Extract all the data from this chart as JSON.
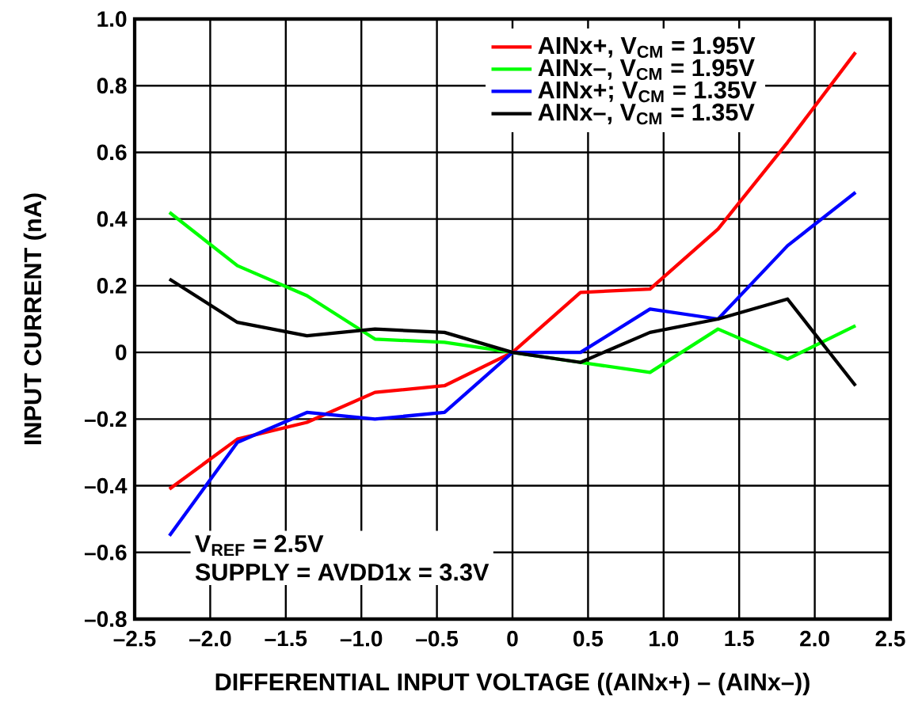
{
  "chart_data": {
    "type": "line",
    "xlabel": "DIFFERENTIAL INPUT VOLTAGE ((AINx+) – (AINx–))",
    "ylabel": "INPUT CURRENT (nA)",
    "x": [
      -2.27,
      -1.82,
      -1.36,
      -0.91,
      -0.45,
      0,
      0.45,
      0.91,
      1.36,
      1.82,
      2.27
    ],
    "series": [
      {
        "name": "AINx+, V$_{CM}$ = 1.95V",
        "color": "#ff0000",
        "values": [
          -0.41,
          -0.26,
          -0.21,
          -0.12,
          -0.1,
          0,
          0.18,
          0.19,
          0.37,
          0.63,
          0.9
        ]
      },
      {
        "name": "AINx–, V$_{CM}$ = 1.95V",
        "color": "#00ff00",
        "values": [
          0.42,
          0.26,
          0.17,
          0.04,
          0.03,
          0,
          -0.03,
          -0.06,
          0.07,
          -0.02,
          0.08
        ]
      },
      {
        "name": "AINx+; V$_{CM}$ = 1.35V",
        "color": "#0000ff",
        "values": [
          -0.55,
          -0.27,
          -0.18,
          -0.2,
          -0.18,
          0,
          0.0,
          0.13,
          0.1,
          0.32,
          0.48
        ]
      },
      {
        "name": "AINx–, V$_{CM}$ = 1.35V",
        "color": "#000000",
        "values": [
          0.22,
          0.09,
          0.05,
          0.07,
          0.06,
          0,
          -0.03,
          0.06,
          0.1,
          0.16,
          -0.1
        ]
      }
    ],
    "xlim": [
      -2.5,
      2.5
    ],
    "ylim": [
      -0.8,
      1.0
    ],
    "xticks": [
      {
        "value": -2.5,
        "label": "–2.5"
      },
      {
        "value": -2,
        "label": "–2.0"
      },
      {
        "value": -1.5,
        "label": "–1.5"
      },
      {
        "value": -1,
        "label": "–1.0"
      },
      {
        "value": -0.5,
        "label": "–0.5"
      },
      0,
      0.5,
      {
        "value": 1,
        "label": "1.0"
      },
      1.5,
      {
        "value": 2,
        "label": "2.0"
      },
      2.5
    ],
    "yticks": [
      {
        "value": -0.8,
        "label": "–0.8"
      },
      {
        "value": -0.6,
        "label": "–0.6"
      },
      {
        "value": -0.4,
        "label": "–0.4"
      },
      {
        "value": -0.2,
        "label": "–0.2"
      },
      0,
      0.2,
      0.4,
      0.6,
      0.8,
      {
        "value": 1,
        "label": "1.0"
      }
    ],
    "grid": true,
    "legend": "top right",
    "marker": "none",
    "line_style": "solid",
    "annotations": [
      "V$_{REF}$ = 2.5V",
      "SUPPLY = AVDD1x = 3.3V"
    ]
  }
}
